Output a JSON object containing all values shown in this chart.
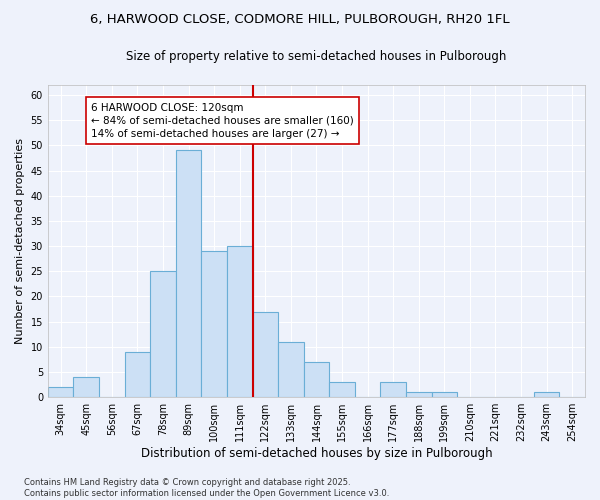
{
  "title_line1": "6, HARWOOD CLOSE, CODMORE HILL, PULBOROUGH, RH20 1FL",
  "title_line2": "Size of property relative to semi-detached houses in Pulborough",
  "xlabel": "Distribution of semi-detached houses by size in Pulborough",
  "ylabel": "Number of semi-detached properties",
  "categories": [
    "34sqm",
    "45sqm",
    "56sqm",
    "67sqm",
    "78sqm",
    "89sqm",
    "100sqm",
    "111sqm",
    "122sqm",
    "133sqm",
    "144sqm",
    "155sqm",
    "166sqm",
    "177sqm",
    "188sqm",
    "199sqm",
    "210sqm",
    "221sqm",
    "232sqm",
    "243sqm",
    "254sqm"
  ],
  "values": [
    2,
    4,
    0,
    9,
    25,
    49,
    29,
    30,
    17,
    11,
    7,
    3,
    0,
    3,
    1,
    1,
    0,
    0,
    0,
    1,
    0
  ],
  "bar_color": "#cce0f5",
  "bar_edge_color": "#6aaed6",
  "vline_color": "#cc0000",
  "vline_idx": 8,
  "annotation_text": "6 HARWOOD CLOSE: 120sqm\n← 84% of semi-detached houses are smaller (160)\n14% of semi-detached houses are larger (27) →",
  "annotation_box_color": "#ffffff",
  "annotation_box_edge": "#cc0000",
  "ylim": [
    0,
    62
  ],
  "yticks": [
    0,
    5,
    10,
    15,
    20,
    25,
    30,
    35,
    40,
    45,
    50,
    55,
    60
  ],
  "footer": "Contains HM Land Registry data © Crown copyright and database right 2025.\nContains public sector information licensed under the Open Government Licence v3.0.",
  "bg_color": "#eef2fb",
  "grid_color": "#ffffff",
  "title_fontsize": 9.5,
  "subtitle_fontsize": 8.5,
  "axis_label_fontsize": 8,
  "tick_fontsize": 7,
  "footer_fontsize": 6,
  "annot_fontsize": 7.5
}
